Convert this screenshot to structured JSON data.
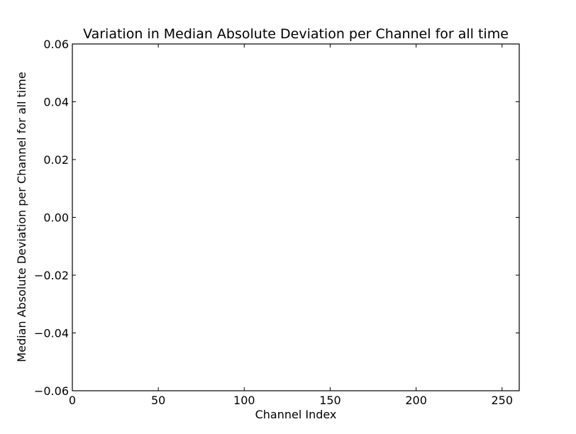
{
  "chart_data": {
    "type": "line",
    "title": "Variation in Median Absolute Deviation per Channel for all time",
    "xlabel": "Channel Index",
    "ylabel": "Median Absolute Deviation per Channel for all time",
    "xlim": [
      0,
      260
    ],
    "ylim": [
      -0.06,
      0.06
    ],
    "x_ticks": [
      0,
      50,
      100,
      150,
      200,
      250
    ],
    "x_tick_labels": [
      "0",
      "50",
      "100",
      "150",
      "200",
      "250"
    ],
    "y_ticks": [
      -0.06,
      -0.04,
      -0.02,
      0.0,
      0.02,
      0.04,
      0.06
    ],
    "y_tick_labels": [
      "−0.06",
      "−0.04",
      "−0.02",
      "0.00",
      "0.02",
      "0.04",
      "0.06"
    ],
    "grid": false,
    "series": []
  }
}
